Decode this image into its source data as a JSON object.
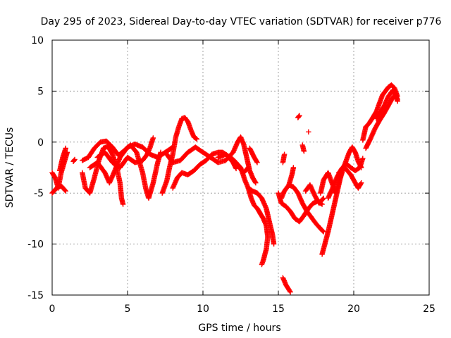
{
  "chart_data": {
    "type": "scatter",
    "title": "Day 295 of 2023, Sidereal Day-to-day VTEC variation (SDTVAR) for receiver p776",
    "xlabel": "GPS time / hours",
    "ylabel": "SDTVAR / TECUs",
    "xlim": [
      0,
      25
    ],
    "ylim": [
      -15,
      10
    ],
    "xticks": [
      0,
      5,
      10,
      15,
      20,
      25
    ],
    "yticks": [
      -15,
      -10,
      -5,
      0,
      5,
      10
    ],
    "xtick_labels": [
      "0",
      "5",
      "10",
      "15",
      "20",
      "25"
    ],
    "ytick_labels": [
      "-15",
      "-10",
      "-5",
      "0",
      "5",
      "10"
    ],
    "grid": true,
    "marker": "plus",
    "color": "#ff0000",
    "series": [
      {
        "name": "p776",
        "tracks": [
          [
            [
              0.0,
              -3.0
            ],
            [
              0.2,
              -3.5
            ],
            [
              0.4,
              -4.5
            ],
            [
              0.6,
              -3.0
            ],
            [
              0.8,
              -2.0
            ],
            [
              1.0,
              -1.0
            ]
          ],
          [
            [
              0.0,
              -5.0
            ],
            [
              0.3,
              -4.5
            ],
            [
              0.6,
              -4.3
            ],
            [
              0.9,
              -4.8
            ]
          ],
          [
            [
              0.5,
              -2.8
            ],
            [
              0.7,
              -1.5
            ],
            [
              0.9,
              -0.6
            ]
          ],
          [
            [
              1.4,
              -1.9
            ],
            [
              1.5,
              -1.7
            ]
          ],
          [
            [
              2.0,
              -3.0
            ],
            [
              2.2,
              -4.5
            ],
            [
              2.5,
              -5.0
            ],
            [
              2.8,
              -3.5
            ],
            [
              3.1,
              -1.8
            ],
            [
              3.4,
              -0.6
            ],
            [
              3.7,
              -0.4
            ],
            [
              4.0,
              -1.2
            ],
            [
              4.3,
              -2.6
            ],
            [
              4.5,
              -4.0
            ],
            [
              4.6,
              -5.5
            ],
            [
              4.7,
              -6.1
            ]
          ],
          [
            [
              2.0,
              -1.8
            ],
            [
              2.4,
              -1.5
            ],
            [
              2.8,
              -0.6
            ],
            [
              3.2,
              0.0
            ],
            [
              3.6,
              0.1
            ],
            [
              4.0,
              -0.5
            ],
            [
              4.4,
              -1.3
            ],
            [
              4.8,
              -0.8
            ],
            [
              5.2,
              -0.3
            ],
            [
              5.6,
              -1.0
            ],
            [
              6.0,
              -3.0
            ],
            [
              6.2,
              -4.5
            ],
            [
              6.4,
              -5.5
            ],
            [
              6.7,
              -4.0
            ],
            [
              7.0,
              -2.0
            ],
            [
              7.2,
              -1.0
            ]
          ],
          [
            [
              2.5,
              -2.5
            ],
            [
              3.0,
              -2.0
            ],
            [
              3.5,
              -3.0
            ],
            [
              3.8,
              -4.0
            ],
            [
              4.1,
              -3.0
            ],
            [
              4.5,
              -1.5
            ],
            [
              5.0,
              -0.5
            ],
            [
              5.5,
              -0.2
            ],
            [
              6.0,
              -0.5
            ],
            [
              6.5,
              -1.2
            ],
            [
              7.0,
              -1.5
            ],
            [
              7.5,
              -1.0
            ],
            [
              8.0,
              -0.5
            ]
          ],
          [
            [
              3.0,
              -1.5
            ],
            [
              3.5,
              -1.0
            ],
            [
              4.0,
              -2.0
            ],
            [
              4.5,
              -2.5
            ],
            [
              5.0,
              -1.5
            ],
            [
              5.5,
              -2.0
            ],
            [
              6.0,
              -1.8
            ],
            [
              6.3,
              -1.2
            ],
            [
              6.5,
              -0.5
            ],
            [
              6.6,
              0.0
            ],
            [
              6.7,
              0.4
            ]
          ],
          [
            [
              7.3,
              -5.0
            ],
            [
              7.6,
              -3.8
            ],
            [
              7.8,
              -2.4
            ],
            [
              8.0,
              -1.2
            ],
            [
              8.2,
              0.5
            ],
            [
              8.4,
              1.5
            ],
            [
              8.6,
              2.3
            ],
            [
              8.8,
              2.4
            ],
            [
              9.0,
              2.0
            ],
            [
              9.2,
              1.2
            ],
            [
              9.4,
              0.5
            ],
            [
              9.6,
              0.3
            ]
          ],
          [
            [
              8.0,
              -4.5
            ],
            [
              8.3,
              -3.5
            ],
            [
              8.6,
              -3.0
            ],
            [
              9.0,
              -3.2
            ],
            [
              9.4,
              -2.8
            ],
            [
              9.8,
              -2.2
            ],
            [
              10.2,
              -1.8
            ],
            [
              10.6,
              -1.2
            ],
            [
              11.0,
              -1.0
            ],
            [
              11.3,
              -1.0
            ],
            [
              11.6,
              -1.3
            ],
            [
              12.0,
              -2.0
            ],
            [
              12.2,
              -2.6
            ]
          ],
          [
            [
              7.5,
              -1.0
            ],
            [
              8.0,
              -2.0
            ],
            [
              8.5,
              -1.8
            ],
            [
              9.0,
              -1.0
            ],
            [
              9.5,
              -0.5
            ],
            [
              10.0,
              -1.0
            ],
            [
              10.5,
              -1.5
            ],
            [
              11.0,
              -2.0
            ],
            [
              11.5,
              -1.8
            ],
            [
              12.0,
              -1.0
            ],
            [
              12.3,
              0.0
            ],
            [
              12.5,
              0.5
            ],
            [
              12.7,
              -0.2
            ],
            [
              12.9,
              -1.5
            ],
            [
              13.1,
              -2.8
            ],
            [
              13.3,
              -3.5
            ],
            [
              13.5,
              -4.0
            ]
          ],
          [
            [
              11.0,
              -1.5
            ],
            [
              11.5,
              -1.2
            ],
            [
              12.0,
              -1.7
            ],
            [
              12.5,
              -2.5
            ],
            [
              12.8,
              -3.8
            ],
            [
              13.0,
              -4.5
            ],
            [
              13.3,
              -4.8
            ],
            [
              13.6,
              -5.0
            ],
            [
              13.9,
              -5.5
            ],
            [
              14.2,
              -6.5
            ],
            [
              14.4,
              -7.8
            ],
            [
              14.6,
              -9.0
            ],
            [
              14.7,
              -10.0
            ]
          ],
          [
            [
              13.0,
              -4.5
            ],
            [
              13.2,
              -5.5
            ],
            [
              13.4,
              -6.2
            ],
            [
              13.6,
              -6.5
            ],
            [
              13.8,
              -7.0
            ],
            [
              14.0,
              -7.5
            ],
            [
              14.2,
              -8.2
            ],
            [
              14.3,
              -9.3
            ],
            [
              14.2,
              -10.5
            ],
            [
              14.0,
              -11.6
            ],
            [
              13.9,
              -12.0
            ]
          ],
          [
            [
              12.4,
              -2.5
            ],
            [
              12.7,
              -3.0
            ],
            [
              13.0,
              -2.5
            ]
          ],
          [
            [
              13.1,
              -0.6
            ],
            [
              13.4,
              -1.5
            ],
            [
              13.6,
              -2.0
            ]
          ],
          [
            [
              15.0,
              -5.0
            ],
            [
              15.2,
              -6.0
            ],
            [
              15.5,
              -6.3
            ],
            [
              15.8,
              -6.8
            ],
            [
              16.1,
              -7.5
            ],
            [
              16.4,
              -7.8
            ],
            [
              16.7,
              -7.2
            ],
            [
              17.0,
              -6.5
            ],
            [
              17.3,
              -6.0
            ],
            [
              17.6,
              -5.8
            ],
            [
              17.9,
              -6.1
            ]
          ],
          [
            [
              15.2,
              -5.5
            ],
            [
              15.4,
              -4.8
            ],
            [
              15.7,
              -4.2
            ],
            [
              16.0,
              -4.4
            ],
            [
              16.3,
              -5.0
            ],
            [
              16.6,
              -6.0
            ],
            [
              16.9,
              -6.8
            ],
            [
              17.2,
              -7.4
            ],
            [
              17.5,
              -8.0
            ],
            [
              17.8,
              -8.5
            ],
            [
              18.0,
              -8.8
            ]
          ],
          [
            [
              15.3,
              -2.0
            ],
            [
              15.4,
              -1.2
            ]
          ],
          [
            [
              15.7,
              -4.2
            ],
            [
              15.9,
              -3.2
            ],
            [
              16.0,
              -2.5
            ]
          ],
          [
            [
              16.3,
              2.4
            ],
            [
              16.4,
              2.6
            ]
          ],
          [
            [
              16.6,
              -0.3
            ],
            [
              16.7,
              -0.9
            ]
          ],
          [
            [
              17.0,
              1.0
            ]
          ],
          [
            [
              16.8,
              -4.8
            ],
            [
              17.1,
              -4.2
            ],
            [
              17.4,
              -5.2
            ],
            [
              17.7,
              -6.0
            ],
            [
              18.0,
              -5.5
            ]
          ],
          [
            [
              17.8,
              -5.0
            ],
            [
              18.0,
              -3.7
            ],
            [
              18.3,
              -3.0
            ],
            [
              18.6,
              -4.2
            ],
            [
              18.8,
              -5.0
            ],
            [
              19.0,
              -4.0
            ],
            [
              19.2,
              -3.0
            ]
          ],
          [
            [
              17.9,
              -11.0
            ],
            [
              18.1,
              -9.9
            ],
            [
              18.3,
              -8.8
            ],
            [
              18.5,
              -7.5
            ],
            [
              18.7,
              -6.2
            ],
            [
              18.9,
              -4.9
            ],
            [
              19.1,
              -3.6
            ],
            [
              19.3,
              -2.6
            ],
            [
              19.5,
              -1.8
            ],
            [
              19.7,
              -1.0
            ],
            [
              19.9,
              -0.5
            ],
            [
              20.1,
              -1.0
            ],
            [
              20.3,
              -1.9
            ],
            [
              20.5,
              -2.5
            ]
          ],
          [
            [
              18.3,
              -5.5
            ],
            [
              18.6,
              -4.5
            ],
            [
              18.9,
              -3.4
            ],
            [
              19.2,
              -2.6
            ],
            [
              19.5,
              -2.1
            ],
            [
              19.8,
              -2.5
            ],
            [
              20.1,
              -2.8
            ],
            [
              20.4,
              -2.5
            ],
            [
              20.6,
              -1.6
            ]
          ],
          [
            [
              19.0,
              -3.0
            ],
            [
              19.4,
              -2.5
            ],
            [
              19.8,
              -3.2
            ],
            [
              20.1,
              -4.0
            ],
            [
              20.3,
              -4.5
            ],
            [
              20.5,
              -4.0
            ]
          ],
          [
            [
              20.6,
              0.2
            ],
            [
              20.8,
              1.5
            ],
            [
              21.0,
              1.8
            ],
            [
              21.3,
              2.5
            ],
            [
              21.5,
              3.0
            ],
            [
              21.7,
              3.8
            ],
            [
              21.9,
              4.6
            ],
            [
              22.1,
              5.0
            ],
            [
              22.3,
              5.4
            ],
            [
              22.5,
              5.6
            ],
            [
              22.7,
              5.3
            ],
            [
              22.9,
              4.5
            ]
          ],
          [
            [
              20.8,
              -0.6
            ],
            [
              21.1,
              0.3
            ],
            [
              21.4,
              1.3
            ],
            [
              21.7,
              2.1
            ],
            [
              22.0,
              2.8
            ],
            [
              22.3,
              3.6
            ],
            [
              22.6,
              4.4
            ],
            [
              22.8,
              4.7
            ],
            [
              22.9,
              4.0
            ]
          ],
          [
            [
              21.5,
              2.3
            ],
            [
              21.7,
              2.8
            ],
            [
              22.0,
              3.5
            ],
            [
              22.3,
              4.5
            ],
            [
              22.6,
              5.1
            ],
            [
              22.9,
              4.2
            ]
          ],
          [
            [
              15.3,
              -13.3
            ],
            [
              15.5,
              -14.0
            ],
            [
              15.8,
              -14.7
            ]
          ]
        ]
      }
    ]
  }
}
